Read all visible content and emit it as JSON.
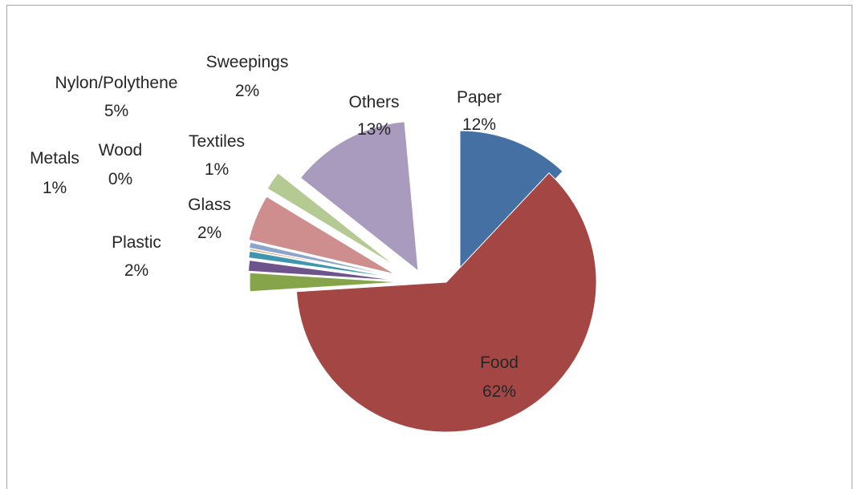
{
  "chart_data": {
    "type": "pie",
    "title": "",
    "slices": [
      {
        "name": "Paper",
        "value": 12,
        "label": "12%",
        "color": "#4470a4",
        "exploded": true
      },
      {
        "name": "Food",
        "value": 62,
        "label": "62%",
        "color": "#a44744",
        "exploded": true
      },
      {
        "name": "Plastic",
        "value": 2,
        "label": "2%",
        "color": "#86a44a",
        "exploded": true
      },
      {
        "name": "Glass",
        "value": 2,
        "label": "2%",
        "color": "#6e548d",
        "exploded": true
      },
      {
        "name": "Metals",
        "value": 1,
        "label": "1%",
        "color": "#3d96ae",
        "exploded": true
      },
      {
        "name": "Wood",
        "value": 0,
        "label": "0%",
        "color": "#da8137",
        "exploded": true
      },
      {
        "name": "Textiles",
        "value": 1,
        "label": "1%",
        "color": "#8ea5cb",
        "exploded": true
      },
      {
        "name": "Nylon/Polythene",
        "value": 5,
        "label": "5%",
        "color": "#ce8e8d",
        "exploded": true
      },
      {
        "name": "Sweepings",
        "value": 2,
        "label": "2%",
        "color": "#b5ca92",
        "exploded": true
      },
      {
        "name": "Others",
        "value": 13,
        "label": "13%",
        "color": "#a99bbd",
        "exploded": true
      }
    ],
    "legend": "none",
    "data_labels": "category name and percentage"
  }
}
